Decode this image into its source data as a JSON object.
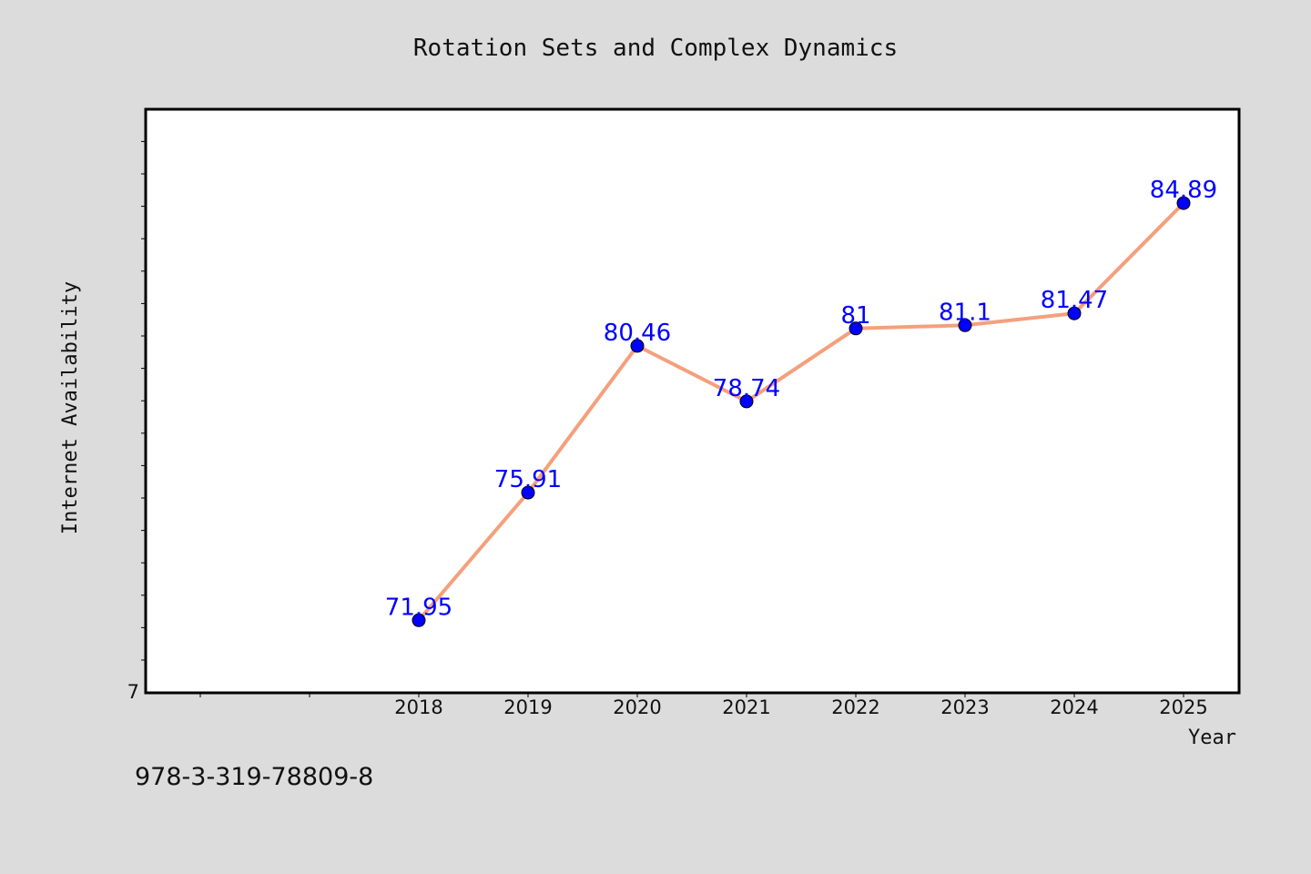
{
  "footer_text": "978-3-319-78809-8",
  "colors": {
    "background": "#dcdcdc",
    "plot_background": "#ffffff",
    "line": "#f4a07c",
    "marker": "#0000ff",
    "data_label": "#0000ff"
  },
  "chart_data": {
    "type": "line",
    "title": "Rotation Sets and Complex Dynamics",
    "xlabel": "Year",
    "ylabel": "Internet Availability",
    "y_tick_labels": [
      "7"
    ],
    "ylim": [
      69.7,
      87.8
    ],
    "grid": false,
    "legend": "none",
    "categories": [
      "2018",
      "2019",
      "2020",
      "2021",
      "2022",
      "2023",
      "2024",
      "2025"
    ],
    "series": [
      {
        "values": [
          71.95,
          75.91,
          80.46,
          78.74,
          81,
          81.1,
          81.47,
          84.89
        ],
        "data_labels": [
          "71.95",
          "75.91",
          "80.46",
          "78.74",
          "81",
          "81.1",
          "81.47",
          "84.89"
        ]
      }
    ]
  }
}
